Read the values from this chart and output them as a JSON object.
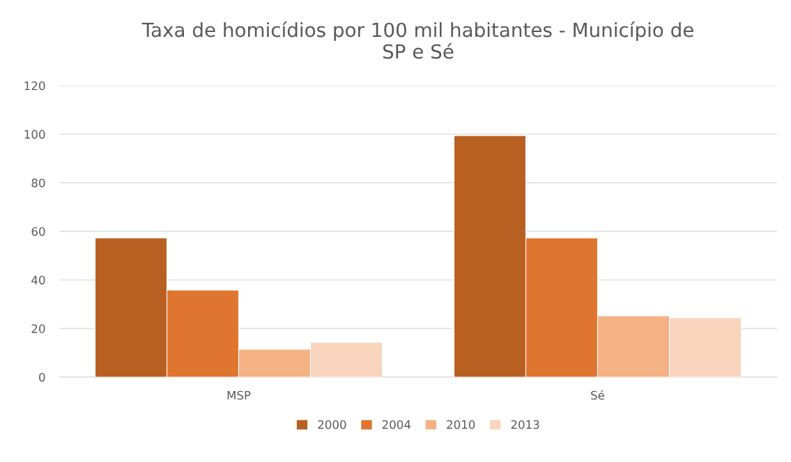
{
  "chart_data": {
    "type": "bar",
    "title": "Taxa de homicídios por 100 mil habitantes - Município de\nSP e Sé",
    "categories": [
      "MSP",
      "Sé"
    ],
    "series": [
      {
        "name": "2000",
        "color": "#b85f22",
        "values": [
          57.3,
          99.4
        ]
      },
      {
        "name": "2004",
        "color": "#e07530",
        "values": [
          35.8,
          57.3
        ]
      },
      {
        "name": "2010",
        "color": "#f4b183",
        "values": [
          11.5,
          25.2
        ]
      },
      {
        "name": "2013",
        "color": "#f8d5bc",
        "values": [
          14.3,
          24.4
        ]
      }
    ],
    "ylim": [
      0,
      120
    ],
    "yticks": [
      0,
      20,
      40,
      60,
      80,
      100,
      120
    ],
    "grid": "y",
    "legend": "bottom"
  }
}
